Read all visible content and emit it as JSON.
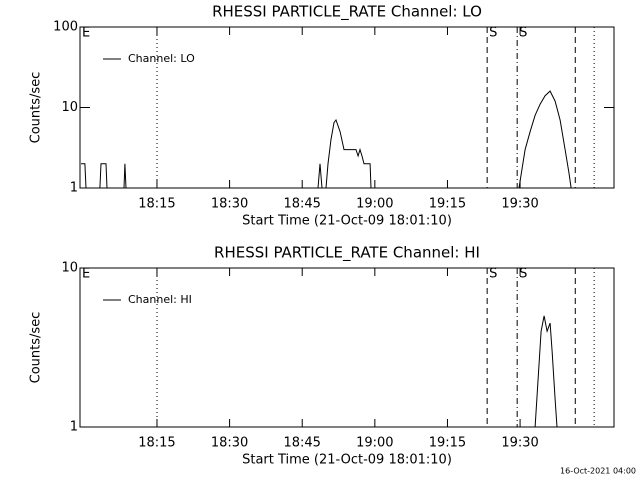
{
  "chart_data": [
    {
      "type": "line",
      "title": "RHESSI PARTICLE_RATE Channel: LO",
      "xlabel": "Start Time (21-Oct-09 18:01:10)",
      "ylabel": "Counts/sec",
      "log_y": true,
      "ylim": [
        1,
        100
      ],
      "yticks": [
        1,
        10,
        100
      ],
      "xlim": [
        "17:59:06",
        "19:49:24"
      ],
      "xticks": [
        "18:15",
        "18:30",
        "18:45",
        "19:00",
        "19:15",
        "19:30"
      ],
      "legend": "upper left",
      "series": [
        {
          "name": "Channel: LO",
          "color": "#000000",
          "x": [
            "17:59:18",
            "18:00:07",
            "18:00:20",
            "18:03:13",
            "18:03:26",
            "18:04:28",
            "18:04:40",
            "18:08:11",
            "18:08:23",
            "18:08:36",
            "18:48:16",
            "18:48:41",
            "18:49:05",
            "18:49:55",
            "18:50:20",
            "18:50:57",
            "18:51:34",
            "18:51:59",
            "18:52:49",
            "18:53:38",
            "18:56:07",
            "18:56:32",
            "18:56:56",
            "18:57:21",
            "18:57:46",
            "18:59:01",
            "18:59:13",
            "19:29:47",
            "19:31:02",
            "19:32:04",
            "19:33:06",
            "19:34:08",
            "19:35:10",
            "19:36:12",
            "19:37:14",
            "19:38:16",
            "19:39:18",
            "19:40:07",
            "19:40:32",
            "19:49:24"
          ],
          "values": [
            2,
            2,
            1,
            1,
            2,
            2,
            1,
            1,
            2,
            1,
            1,
            2,
            1,
            1,
            2,
            4,
            6.5,
            7,
            5,
            3,
            3,
            2.5,
            3,
            2.5,
            2,
            2,
            1,
            1,
            3,
            5,
            8,
            11,
            14,
            16,
            12,
            7,
            3,
            1.5,
            1,
            1
          ]
        }
      ],
      "vlines": [
        {
          "x": "18:15:00",
          "style": "dotted"
        },
        {
          "x": "19:23:12",
          "style": "dashed"
        },
        {
          "x": "19:29:24",
          "style": "dash-dot"
        },
        {
          "x": "19:41:24",
          "style": "dashed"
        },
        {
          "x": "19:45:18",
          "style": "dotted"
        }
      ],
      "annotations": [
        {
          "text": "E",
          "x": "17:59:06"
        },
        {
          "text": "S",
          "x": "19:23:12"
        },
        {
          "text": "S",
          "x": "19:29:24"
        }
      ]
    },
    {
      "type": "line",
      "title": "RHESSI PARTICLE_RATE Channel: HI",
      "xlabel": "Start Time (21-Oct-09 18:01:10)",
      "ylabel": "Counts/sec",
      "log_y": true,
      "ylim": [
        1,
        10
      ],
      "yticks": [
        1,
        10
      ],
      "xlim": [
        "17:59:06",
        "19:49:24"
      ],
      "xticks": [
        "18:15",
        "18:30",
        "18:45",
        "19:00",
        "19:15",
        "19:30"
      ],
      "legend": "upper left",
      "series": [
        {
          "name": "Channel: HI",
          "color": "#000000",
          "x": [
            "17:59:06",
            "19:33:06",
            "19:33:43",
            "19:34:20",
            "19:34:58",
            "19:35:35",
            "19:36:12",
            "19:36:37",
            "19:37:14",
            "19:37:38",
            "19:49:24"
          ],
          "values": [
            1,
            1,
            2,
            4,
            5,
            4,
            4.5,
            3,
            1.5,
            1,
            1
          ]
        }
      ],
      "vlines": [
        {
          "x": "18:15:00",
          "style": "dotted"
        },
        {
          "x": "19:23:12",
          "style": "dashed"
        },
        {
          "x": "19:29:24",
          "style": "dash-dot"
        },
        {
          "x": "19:41:24",
          "style": "dashed"
        },
        {
          "x": "19:45:18",
          "style": "dotted"
        }
      ],
      "annotations": [
        {
          "text": "E",
          "x": "17:59:06"
        },
        {
          "text": "S",
          "x": "19:23:12"
        },
        {
          "text": "S",
          "x": "19:29:24"
        }
      ]
    }
  ],
  "footer": "16-Oct-2021 04:00"
}
